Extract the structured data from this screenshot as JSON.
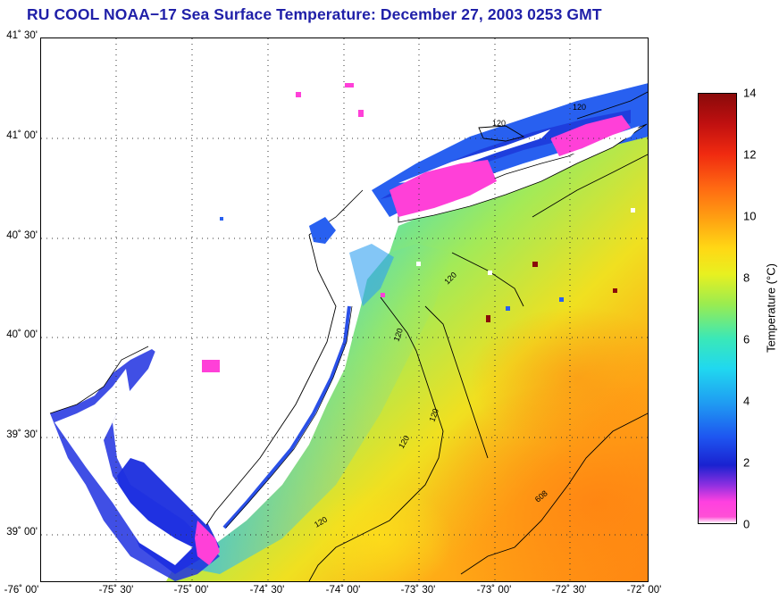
{
  "title": "RU COOL  NOAA−17  Sea Surface Temperature:  December 27, 2003 0253 GMT",
  "lat_labels": [
    "41˚ 30'",
    "41˚ 00'",
    "40˚ 30'",
    "40˚ 00'",
    "39˚ 30'",
    "39˚ 00'"
  ],
  "lon_labels": [
    "-76˚ 00'",
    "-75˚ 30'",
    "-75˚ 00'",
    "-74˚ 30'",
    "-74˚ 00'",
    "-73˚ 30'",
    "-73˚ 00'",
    "-72˚ 30'",
    "-72˚ 00'"
  ],
  "contour_labels": {
    "c1": "120",
    "c2": "120",
    "c3": "120",
    "c4": "120",
    "c5": "120",
    "c6": "120",
    "c7": "120",
    "c8": "608"
  },
  "colorbar": {
    "label": "Temperature (°C)",
    "ticks": [
      "0",
      "2",
      "4",
      "6",
      "8",
      "10",
      "12",
      "14"
    ],
    "min": 0,
    "max": 14
  },
  "colors": {
    "title": "#1f1fa8",
    "land": "#ffffff",
    "warm": "#ff9a14",
    "cold": "#ff40e0"
  }
}
